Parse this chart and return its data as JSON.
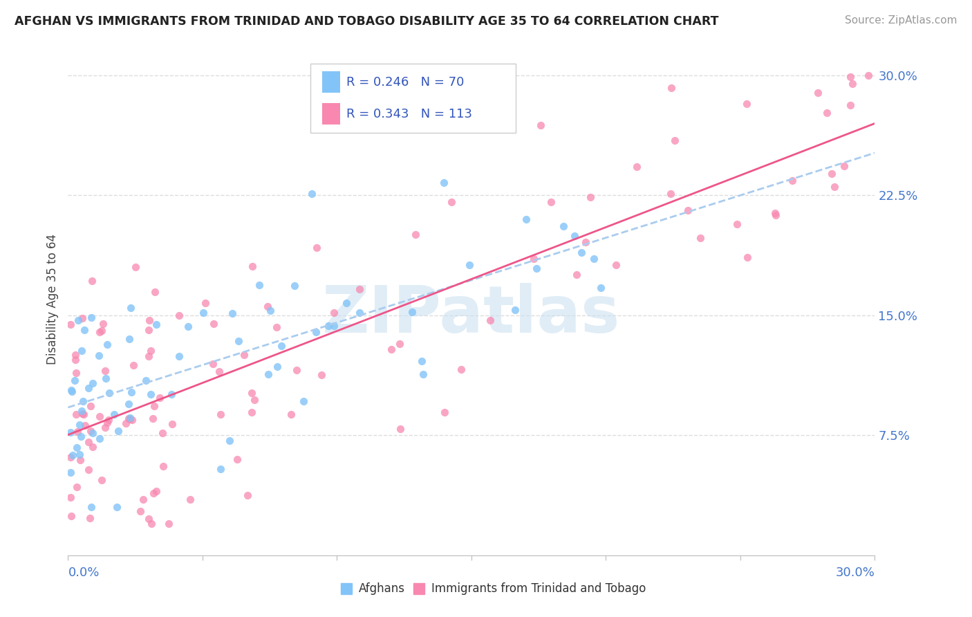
{
  "title": "AFGHAN VS IMMIGRANTS FROM TRINIDAD AND TOBAGO DISABILITY AGE 35 TO 64 CORRELATION CHART",
  "source": "Source: ZipAtlas.com",
  "ylabel": "Disability Age 35 to 64",
  "color_afghan": "#82C4F8",
  "color_trinidad": "#F888B0",
  "color_line_afghan": "#AACCEE",
  "color_line_trinidad": "#EE5588",
  "legend1_R": "0.246",
  "legend1_N": "70",
  "legend2_R": "0.343",
  "legend2_N": "113",
  "legend_label1": "Afghans",
  "legend_label2": "Immigrants from Trinidad and Tobago",
  "xlim": [
    0.0,
    0.3
  ],
  "ylim": [
    0.0,
    0.32
  ],
  "ytick_vals": [
    0.075,
    0.15,
    0.225,
    0.3
  ],
  "ytick_labels": [
    "7.5%",
    "15.0%",
    "22.5%",
    "30.0%"
  ],
  "watermark_color": "#C8DFF0"
}
